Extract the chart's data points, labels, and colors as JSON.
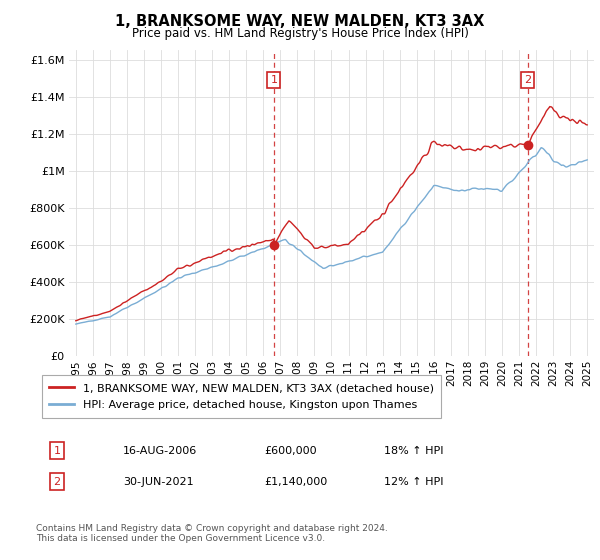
{
  "title": "1, BRANKSOME WAY, NEW MALDEN, KT3 3AX",
  "subtitle": "Price paid vs. HM Land Registry's House Price Index (HPI)",
  "legend_line1": "1, BRANKSOME WAY, NEW MALDEN, KT3 3AX (detached house)",
  "legend_line2": "HPI: Average price, detached house, Kingston upon Thames",
  "annotation1_label": "1",
  "annotation1_date": "16-AUG-2006",
  "annotation1_price": "£600,000",
  "annotation1_hpi": "18% ↑ HPI",
  "annotation1_year": 2006.62,
  "annotation1_value": 600000,
  "annotation2_label": "2",
  "annotation2_date": "30-JUN-2021",
  "annotation2_price": "£1,140,000",
  "annotation2_hpi": "12% ↑ HPI",
  "annotation2_year": 2021.5,
  "annotation2_value": 1140000,
  "red_line_color": "#cc2222",
  "blue_line_color": "#7aadd4",
  "annotation_color": "#cc2222",
  "grid_color": "#dddddd",
  "background_color": "#ffffff",
  "footer": "Contains HM Land Registry data © Crown copyright and database right 2024.\nThis data is licensed under the Open Government Licence v3.0.",
  "ylim": [
    0,
    1650000
  ],
  "yticks": [
    0,
    200000,
    400000,
    600000,
    800000,
    1000000,
    1200000,
    1400000,
    1600000
  ],
  "ytick_labels": [
    "£0",
    "£200K",
    "£400K",
    "£600K",
    "£800K",
    "£1M",
    "£1.2M",
    "£1.4M",
    "£1.6M"
  ],
  "xlim_start": 1994.6,
  "xlim_end": 2025.4
}
